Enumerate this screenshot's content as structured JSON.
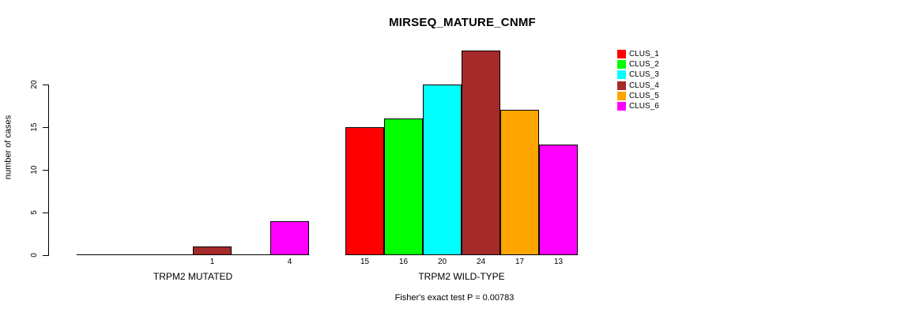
{
  "chart_data": {
    "type": "bar",
    "title": "MIRSEQ_MATURE_CNMF",
    "ylabel": "number of cases",
    "note": "Fisher's exact test P = 0.00783",
    "yticks": [
      0,
      5,
      10,
      15,
      20
    ],
    "ylim": [
      0,
      24
    ],
    "grid": false,
    "legend_position": "right",
    "series_colors": [
      "#FF0000",
      "#00FF00",
      "#00FFFF",
      "#A52A2A",
      "#FFA500",
      "#FF00FF"
    ],
    "legend": {
      "entries": [
        {
          "label": "CLUS_1",
          "color": "#FF0000"
        },
        {
          "label": "CLUS_2",
          "color": "#00FF00"
        },
        {
          "label": "CLUS_3",
          "color": "#00FFFF"
        },
        {
          "label": "CLUS_4",
          "color": "#A52A2A"
        },
        {
          "label": "CLUS_5",
          "color": "#FFA500"
        },
        {
          "label": "CLUS_6",
          "color": "#FF00FF"
        }
      ]
    },
    "groups": [
      {
        "label": "TRPM2 MUTATED",
        "values": [
          0,
          0,
          0,
          1,
          0,
          4
        ],
        "bar_labels": [
          "",
          "",
          "",
          "1",
          "",
          "4"
        ]
      },
      {
        "label": "TRPM2 WILD-TYPE",
        "values": [
          15,
          16,
          20,
          24,
          17,
          13
        ],
        "bar_labels": [
          "15",
          "16",
          "20",
          "24",
          "17",
          "13"
        ]
      }
    ]
  }
}
